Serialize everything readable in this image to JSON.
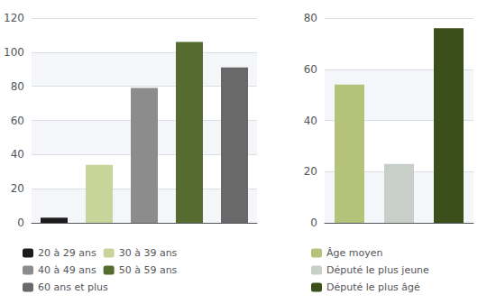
{
  "chart_data": [
    {
      "type": "bar",
      "categories": [
        "20 à 29 ans",
        "30 à 39 ans",
        "40 à 49 ans",
        "50 à 59 ans",
        "60 ans et plus"
      ],
      "values": [
        3,
        34,
        79,
        106,
        91
      ],
      "colors": [
        "#1c1c1c",
        "#c8d49a",
        "#8c8c8c",
        "#556b2f",
        "#696969"
      ],
      "ylim": [
        0,
        120
      ],
      "yticks": [
        0,
        20,
        40,
        60,
        80,
        100,
        120
      ],
      "grid": true,
      "tick_labels": "y",
      "legend": "bottom"
    },
    {
      "type": "bar",
      "categories": [
        "Âge moyen",
        "Député le plus jeune",
        "Député le plus âgé"
      ],
      "values": [
        54,
        23,
        76
      ],
      "colors": [
        "#b5c27a",
        "#c8cfc8",
        "#3a4f1a"
      ],
      "ylim": [
        0,
        80
      ],
      "yticks": [
        0,
        20,
        40,
        60,
        80
      ],
      "grid": true,
      "tick_labels": "y",
      "legend": "bottom"
    }
  ]
}
